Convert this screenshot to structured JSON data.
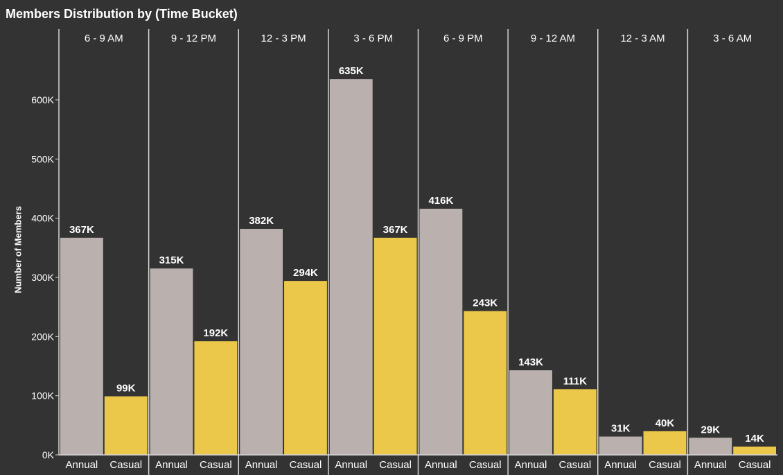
{
  "title": "Members Distribution by (Time Bucket)",
  "colors": {
    "background": "#333333",
    "annual": "#bab1ae",
    "casual": "#ebc84a",
    "divider": "#d6d6d6",
    "text": "#ffffff"
  },
  "chart_data": {
    "type": "bar",
    "title": "Members Distribution by (Time Bucket)",
    "ylabel": "Number of Members",
    "xlabel": "",
    "ylim": [
      0,
      700000
    ],
    "yticks": [
      0,
      100000,
      200000,
      300000,
      400000,
      500000,
      600000
    ],
    "ytick_labels": [
      "0K",
      "100K",
      "200K",
      "300K",
      "400K",
      "500K",
      "600K"
    ],
    "categories": [
      "6 - 9 AM",
      "9 - 12 PM",
      "12 - 3 PM",
      "3 - 6 PM",
      "6 - 9 PM",
      "9 - 12 AM",
      "12 - 3 AM",
      "3 - 6 AM"
    ],
    "sub_categories": [
      "Annual",
      "Casual"
    ],
    "series": [
      {
        "name": "Annual",
        "values": [
          367000,
          315000,
          382000,
          635000,
          416000,
          143000,
          31000,
          29000
        ],
        "labels": [
          "367K",
          "315K",
          "382K",
          "635K",
          "416K",
          "143K",
          "31K",
          "29K"
        ]
      },
      {
        "name": "Casual",
        "values": [
          99000,
          192000,
          294000,
          367000,
          243000,
          111000,
          40000,
          14000
        ],
        "labels": [
          "99K",
          "192K",
          "294K",
          "367K",
          "243K",
          "111K",
          "40K",
          "14K"
        ]
      }
    ],
    "grid": false,
    "legend": "none"
  }
}
